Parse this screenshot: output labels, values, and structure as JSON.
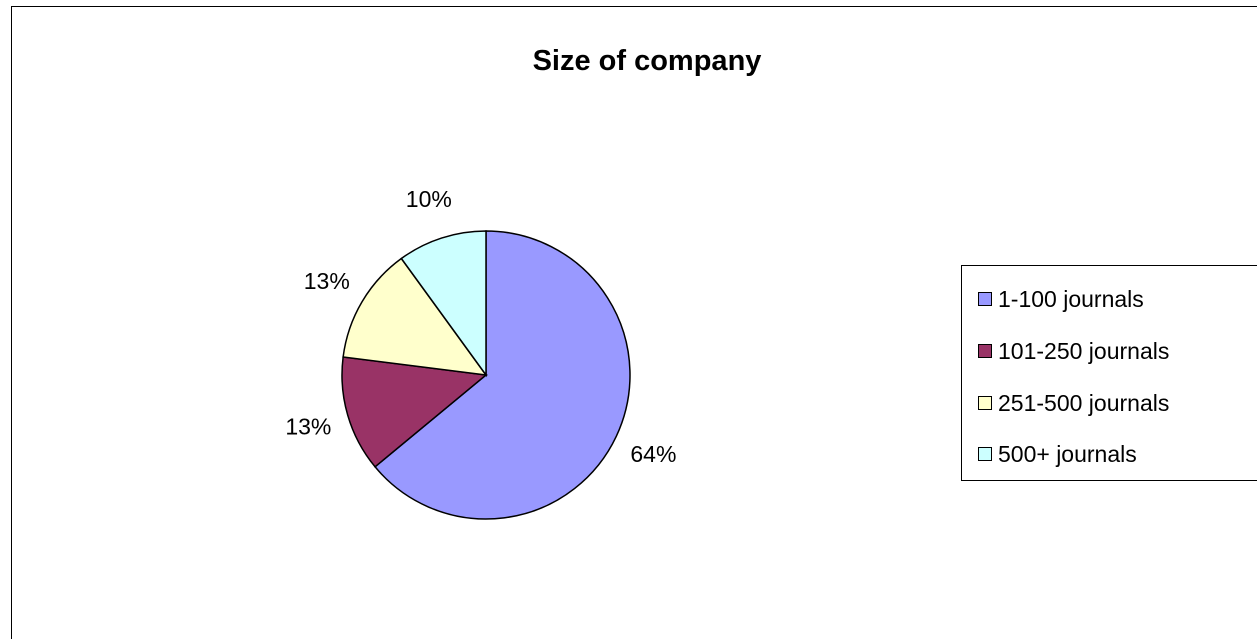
{
  "chart_data": {
    "type": "pie",
    "title": "Size of company",
    "categories": [
      "1-100 journals",
      "101-250 journals",
      "251-500 journals",
      "500+ journals"
    ],
    "values": [
      64,
      13,
      13,
      10
    ],
    "value_labels": [
      "64%",
      "13%",
      "13%",
      "10%"
    ],
    "colors": [
      "#9999ff",
      "#993366",
      "#ffffcc",
      "#ccffff"
    ],
    "start_angle_deg": 0,
    "direction": "clockwise-from-top",
    "legend_placement": "right"
  }
}
